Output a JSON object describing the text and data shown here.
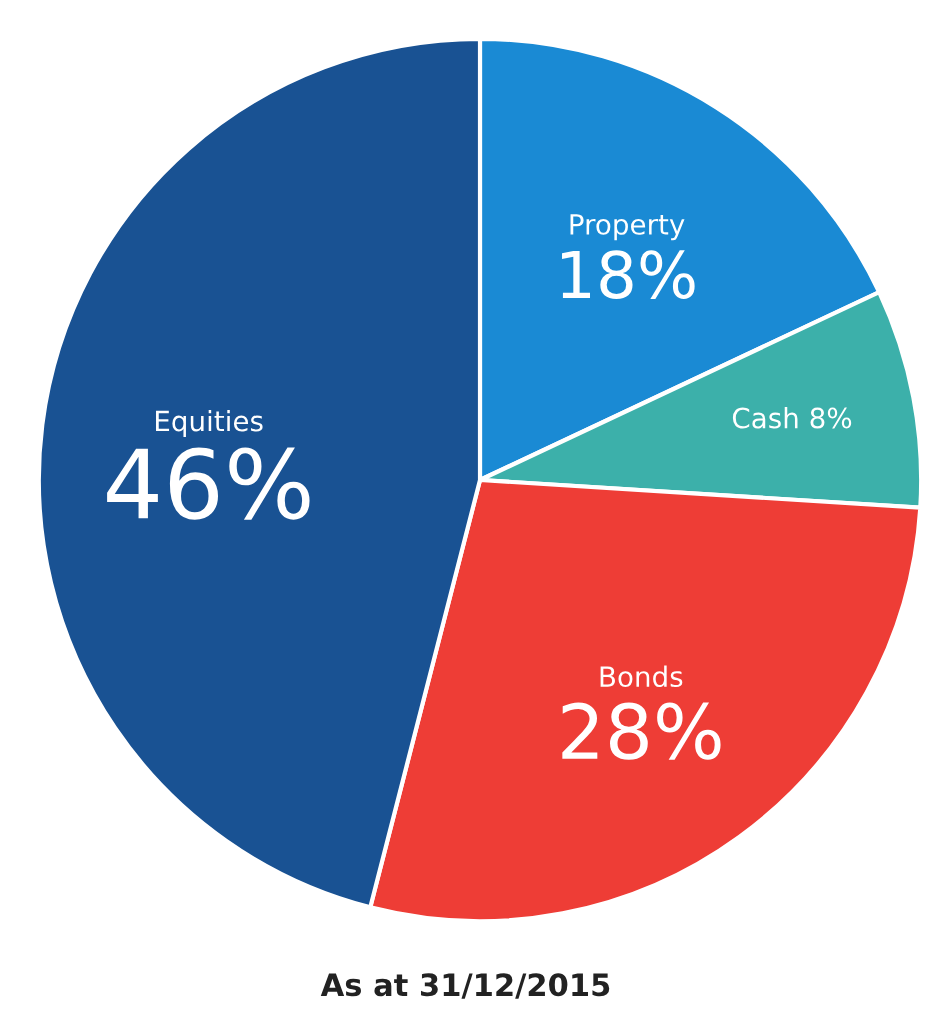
{
  "chart_data": {
    "type": "pie",
    "categories": [
      "Property",
      "Cash",
      "Bonds",
      "Equities"
    ],
    "values": [
      18,
      8,
      28,
      46
    ],
    "value_labels": [
      "18%",
      "8%",
      "28%",
      "46%"
    ],
    "colors": [
      "#1a8ad4",
      "#3cb0aa",
      "#ee3d36",
      "#195293"
    ],
    "annotations": [
      "As at 31/12/2015"
    ]
  }
}
